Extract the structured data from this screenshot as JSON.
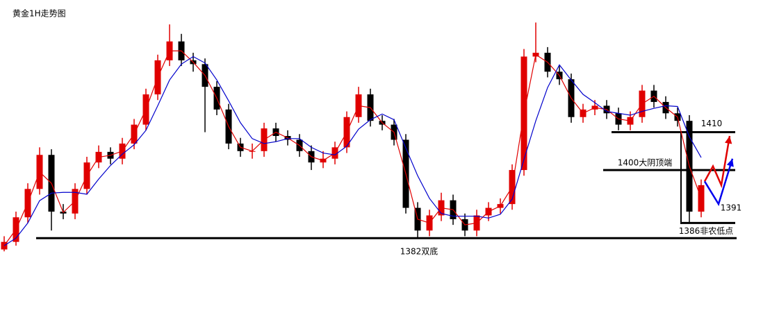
{
  "chart_data": {
    "type": "candlestick",
    "title": "黄金1H走势图",
    "ylim": [
      1378,
      1440
    ],
    "up_color": "#e00000",
    "down_color": "#000000",
    "open": [
      1379,
      1381,
      1387.5,
      1395,
      1404,
      1389,
      1388.5,
      1395,
      1402,
      1404.8,
      1403,
      1407,
      1412,
      1420,
      1429,
      1434,
      1429,
      1428,
      1422,
      1416,
      1407,
      1405,
      1405,
      1411,
      1409,
      1408,
      1405,
      1402,
      1403,
      1406,
      1414,
      1420,
      1413,
      1412,
      1408,
      1390,
      1384,
      1388,
      1392,
      1387,
      1384,
      1388,
      1390,
      1391,
      1400,
      1430,
      1431,
      1426,
      1424,
      1414,
      1416,
      1417,
      1415,
      1412,
      1414,
      1421,
      1418,
      1415,
      1413,
      1389
    ],
    "high": [
      1382.5,
      1389,
      1396.5,
      1406,
      1405.5,
      1391,
      1396.5,
      1403.5,
      1406.5,
      1406,
      1408.5,
      1413.5,
      1421.5,
      1430.5,
      1438.5,
      1436,
      1431,
      1429.5,
      1423.5,
      1417.5,
      1408.5,
      1407,
      1412.5,
      1412.5,
      1410.5,
      1409.5,
      1406.5,
      1405,
      1407.5,
      1415.5,
      1422,
      1421.5,
      1414.5,
      1413.5,
      1409.5,
      1391.5,
      1389.5,
      1394,
      1393.5,
      1388.5,
      1389.5,
      1391.5,
      1392.5,
      1401.5,
      1432,
      1439,
      1432.5,
      1427.5,
      1425.5,
      1417.5,
      1418.5,
      1418.5,
      1416.5,
      1415.5,
      1422.5,
      1422.5,
      1419.5,
      1416.5,
      1414.5,
      1397.5
    ],
    "low": [
      1378.5,
      1380,
      1386,
      1393.5,
      1384,
      1387,
      1387,
      1393.5,
      1400.5,
      1401.5,
      1401.5,
      1405.5,
      1410.5,
      1418.5,
      1427.5,
      1427.5,
      1426,
      1410,
      1414.5,
      1405.5,
      1403.5,
      1403,
      1403.5,
      1407.5,
      1406.5,
      1403.5,
      1400,
      1400.5,
      1401.5,
      1404.5,
      1412.5,
      1411.5,
      1410.5,
      1406.5,
      1388.5,
      1382,
      1382.5,
      1386.5,
      1385.5,
      1382.5,
      1382.5,
      1386.5,
      1388.5,
      1389.5,
      1398.5,
      1428.5,
      1424.5,
      1422.5,
      1412.5,
      1412.5,
      1414.5,
      1413.5,
      1410.5,
      1410.5,
      1412.5,
      1416.5,
      1413.5,
      1411.5,
      1386,
      1387.5
    ],
    "close": [
      1381,
      1387.5,
      1395,
      1404,
      1389,
      1388.5,
      1395,
      1402,
      1404.8,
      1403,
      1407,
      1412,
      1420,
      1429,
      1434,
      1429,
      1428,
      1422,
      1416,
      1407,
      1405,
      1405,
      1411,
      1409,
      1408,
      1405,
      1402,
      1403,
      1406,
      1414,
      1420,
      1413,
      1412,
      1408,
      1390,
      1384,
      1388,
      1392,
      1387,
      1384,
      1388,
      1390,
      1391,
      1400,
      1430,
      1431,
      1426,
      1424,
      1414,
      1416,
      1417,
      1415,
      1412,
      1414,
      1421,
      1418,
      1415,
      1413,
      1389,
      1396
    ],
    "series": [
      {
        "color": "#e00000",
        "values": [
          1380,
          1384.3,
          1391.3,
          1399.5,
          1396.5,
          1388.8,
          1391.8,
          1398.5,
          1403.4,
          1403.9,
          1405,
          1409.5,
          1416,
          1424.5,
          1431.5,
          1431.5,
          1428.5,
          1425,
          1419,
          1411.5,
          1406,
          1405,
          1408,
          1410,
          1408.5,
          1406.5,
          1403.5,
          1402.5,
          1404.5,
          1410,
          1417,
          1416.5,
          1412.5,
          1410,
          1399,
          1387,
          1386,
          1390,
          1389.5,
          1385.5,
          1386,
          1389,
          1390.5,
          1395.5,
          1415,
          1430.5,
          1428.5,
          1425,
          1419,
          1415,
          1416.5,
          1416,
          1413.5,
          1413,
          1417.5,
          1419.5,
          1416.5,
          1414,
          1401,
          1392.5
        ]
      },
      {
        "color": "#0000cc",
        "values": [
          1380,
          1382,
          1386,
          1391.9,
          1393.9,
          1394.1,
          1394.1,
          1393.6,
          1397.6,
          1401.2,
          1404.2,
          1406.7,
          1410.5,
          1417,
          1423.8,
          1428,
          1430,
          1428.3,
          1423.8,
          1418.3,
          1412.5,
          1408.3,
          1407,
          1407.5,
          1408.3,
          1408.3,
          1406,
          1404.5,
          1404,
          1406.3,
          1410.8,
          1413.3,
          1414.8,
          1413.3,
          1405.8,
          1398.5,
          1392.5,
          1388.5,
          1387.8,
          1387.8,
          1387.8,
          1387.3,
          1388.3,
          1392.3,
          1402.8,
          1413,
          1421.8,
          1427.8,
          1423.8,
          1420,
          1417.8,
          1415.5,
          1415,
          1414.5,
          1415.5,
          1416.3,
          1417,
          1416.8,
          1408.8,
          1403.3
        ]
      }
    ],
    "projections": [
      {
        "color": "#e00000",
        "values": [
          1397,
          1401,
          1396,
          1409
        ]
      },
      {
        "color": "#0000ee",
        "values": [
          1397,
          1391,
          1403
        ]
      }
    ],
    "levels": [
      {
        "value": 1382,
        "label": "1382双底"
      },
      {
        "value": 1386,
        "label": "1386非农低点"
      },
      {
        "value": 1400,
        "label": "1400大阴顶端"
      },
      {
        "value": 1410,
        "label": "1410"
      }
    ],
    "annotations": [
      {
        "value": 1391,
        "label": "1391"
      }
    ]
  }
}
